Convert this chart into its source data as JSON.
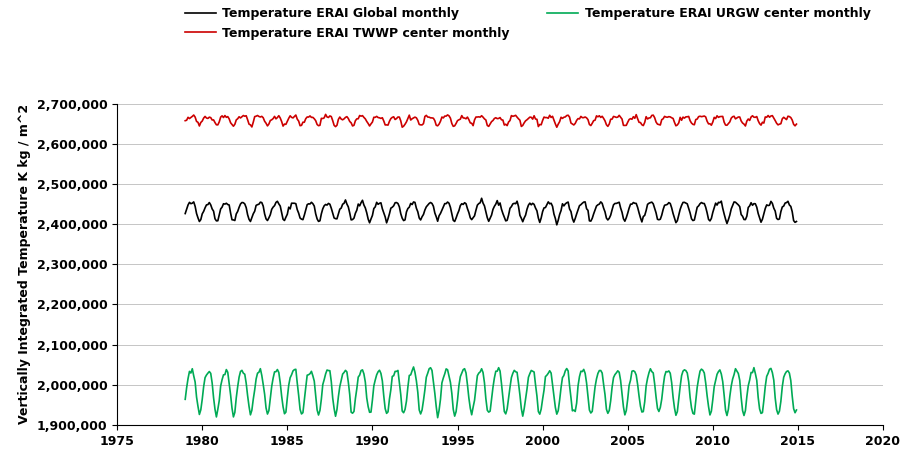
{
  "title": "",
  "ylabel": "Vertically Integrated Temperature K kg / m^2",
  "xlabel": "",
  "xlim": [
    1975,
    2020
  ],
  "ylim": [
    1900000,
    2700000
  ],
  "xticks": [
    1975,
    1980,
    1985,
    1990,
    1995,
    2000,
    2005,
    2010,
    2015,
    2020
  ],
  "yticks": [
    1900000,
    2000000,
    2100000,
    2200000,
    2300000,
    2400000,
    2500000,
    2600000,
    2700000
  ],
  "legend_entries": [
    {
      "label": "Temperature ERAI Global monthly",
      "color": "#000000"
    },
    {
      "label": "Temperature ERAI TWWP center monthly",
      "color": "#cc0000"
    },
    {
      "label": "Temperature ERAI URGW center monthly",
      "color": "#00aa55"
    }
  ],
  "series": {
    "global": {
      "color": "#000000",
      "mean": 2435000,
      "amplitude": 22000,
      "amplitude2": 5000,
      "noise": 3000,
      "start_year": 1979.0,
      "end_year": 2015.0
    },
    "twwp": {
      "color": "#cc0000",
      "mean": 2660000,
      "amplitude": 10000,
      "amplitude2": 4000,
      "noise": 3000,
      "start_year": 1979.0,
      "end_year": 2015.0
    },
    "urgw": {
      "color": "#00aa55",
      "mean": 1990000,
      "amplitude": 55000,
      "amplitude2": 10000,
      "noise": 4000,
      "start_year": 1979.0,
      "end_year": 2015.0
    }
  },
  "background_color": "#ffffff",
  "grid_color": "#bbbbbb",
  "linewidth": 1.2,
  "figsize": [
    9.01,
    4.72
  ],
  "dpi": 100
}
